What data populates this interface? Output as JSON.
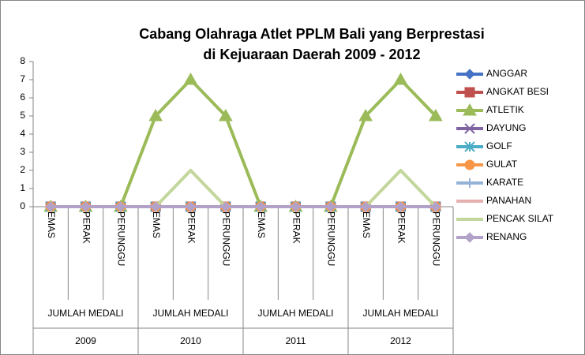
{
  "chart_data": {
    "type": "line",
    "title": [
      "Cabang Olahraga Atlet PPLM Bali yang Berprestasi",
      "di Kejuaraan Daerah 2009 - 2012"
    ],
    "categories": [
      "EMAS",
      "PERAK",
      "PERUNGGU",
      "EMAS",
      "PERAK",
      "PERUNGGU",
      "EMAS",
      "PERAK",
      "PERUNGGU",
      "EMAS",
      "PERAK",
      "PERUNGGU"
    ],
    "groups": [
      {
        "name": "2009",
        "label": "JUMLAH MEDALI"
      },
      {
        "name": "2010",
        "label": "JUMLAH MEDALI"
      },
      {
        "name": "2011",
        "label": "JUMLAH MEDALI"
      },
      {
        "name": "2012",
        "label": "JUMLAH MEDALI"
      }
    ],
    "ylim": [
      0,
      8
    ],
    "yticks": [
      0,
      1,
      2,
      3,
      4,
      5,
      6,
      7,
      8
    ],
    "legend": "right",
    "series": [
      {
        "name": "ANGGAR",
        "color": "#4472c4",
        "marker": "diamond",
        "values": [
          0,
          0,
          0,
          0,
          0,
          0,
          0,
          0,
          0,
          0,
          0,
          0
        ]
      },
      {
        "name": "ANGKAT BESI",
        "color": "#c0504d",
        "marker": "square",
        "values": [
          0,
          0,
          0,
          0,
          0,
          0,
          0,
          0,
          0,
          0,
          0,
          0
        ]
      },
      {
        "name": "ATLETIK",
        "color": "#9bbb59",
        "marker": "triangle",
        "values": [
          0,
          0,
          0,
          5,
          7,
          5,
          0,
          0,
          0,
          5,
          7,
          5
        ]
      },
      {
        "name": "DAYUNG",
        "color": "#8064a2",
        "marker": "x",
        "values": [
          0,
          0,
          0,
          0,
          0,
          0,
          0,
          0,
          0,
          0,
          0,
          0
        ]
      },
      {
        "name": "GOLF",
        "color": "#4bacc6",
        "marker": "star",
        "values": [
          0,
          0,
          0,
          0,
          0,
          0,
          0,
          0,
          0,
          0,
          0,
          0
        ]
      },
      {
        "name": "GULAT",
        "color": "#f79646",
        "marker": "circle",
        "values": [
          0,
          0,
          0,
          0,
          0,
          0,
          0,
          0,
          0,
          0,
          0,
          0
        ]
      },
      {
        "name": "KARATE",
        "color": "#95b3d7",
        "marker": "plus",
        "values": [
          0,
          0,
          0,
          0,
          0,
          0,
          0,
          0,
          0,
          0,
          0,
          0
        ]
      },
      {
        "name": "PANAHAN",
        "color": "#e6b0ae",
        "marker": "none",
        "values": [
          0,
          0,
          0,
          0,
          0,
          0,
          0,
          0,
          0,
          0,
          0,
          0
        ]
      },
      {
        "name": "PENCAK SILAT",
        "color": "#c3d69b",
        "marker": "none",
        "values": [
          0,
          0,
          0,
          0,
          2,
          0,
          0,
          0,
          0,
          0,
          2,
          0
        ]
      },
      {
        "name": "RENANG",
        "color": "#b3a2c7",
        "marker": "diamond",
        "values": [
          0,
          0,
          0,
          0,
          0,
          0,
          0,
          0,
          0,
          0,
          0,
          0
        ]
      }
    ]
  }
}
